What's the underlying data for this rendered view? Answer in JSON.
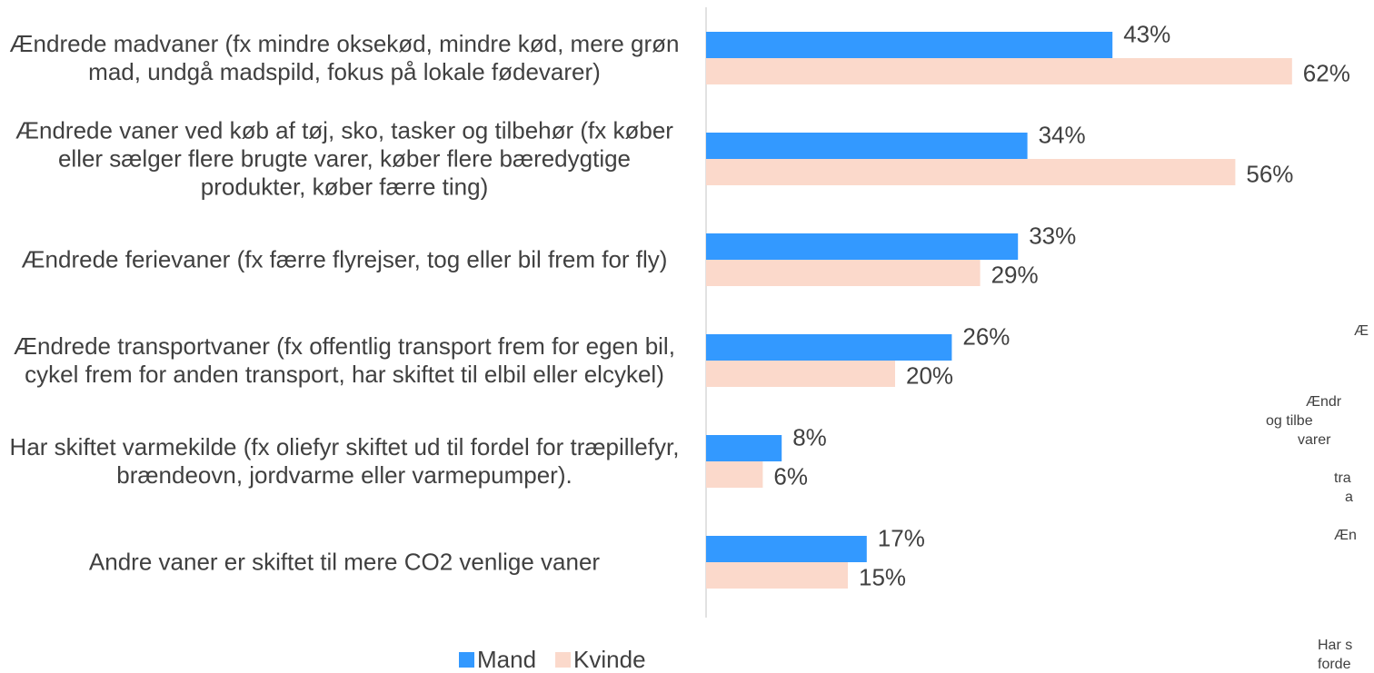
{
  "chart_data": {
    "type": "bar",
    "orientation": "horizontal",
    "categories": [
      "Ændrede madvaner (fx mindre oksekød, mindre kød, mere grøn mad, undgå madspild, fokus på lokale fødevarer)",
      "Ændrede vaner ved køb af tøj, sko, tasker og tilbehør (fx køber eller sælger flere brugte varer, køber flere bæredygtige produkter, køber færre ting)",
      "Ændrede ferievaner (fx færre flyrejser, tog eller bil frem for fly)",
      "Ændrede transportvaner (fx offentlig transport frem for egen bil, cykel frem for anden transport, har skiftet til elbil eller elcykel)",
      "Har skiftet varmekilde (fx oliefyr skiftet ud til fordel for træpillefyr, brændeovn, jordvarme eller varmepumper).",
      "Andre vaner er skiftet til mere CO2 venlige vaner"
    ],
    "series": [
      {
        "name": "Mand",
        "color": "#3399ff",
        "values": [
          43,
          34,
          33,
          26,
          8,
          17
        ],
        "value_labels": [
          "43%",
          "34%",
          "33%",
          "26%",
          "8%",
          "17%"
        ]
      },
      {
        "name": "Kvinde",
        "color": "#fbd9cb",
        "values": [
          62,
          56,
          29,
          20,
          6,
          15
        ],
        "value_labels": [
          "62%",
          "56%",
          "29%",
          "20%",
          "6%",
          "15%"
        ]
      }
    ],
    "xlim": [
      0,
      70
    ],
    "legend": "bottom",
    "annotations": [
      "Æ",
      "Ændr",
      "og tilbe",
      "varer",
      "tra",
      "a",
      "Æn",
      "Har s",
      "forde"
    ]
  }
}
